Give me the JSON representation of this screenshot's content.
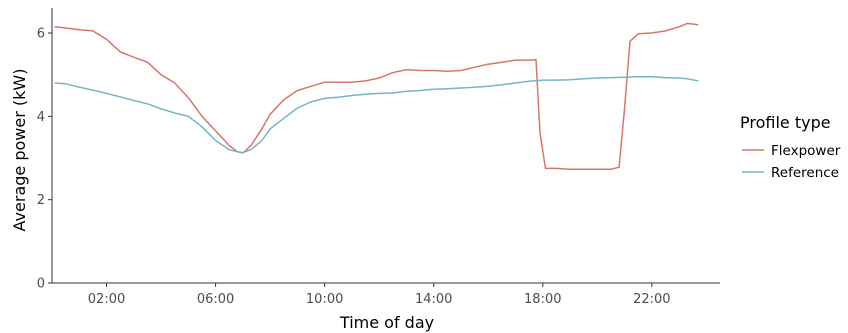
{
  "chart_data": {
    "type": "line",
    "xlabel": "Time of day",
    "ylabel": "Average power (kW)",
    "x_unit": "hours",
    "xlim": [
      0,
      24.5
    ],
    "ylim": [
      0,
      6.6
    ],
    "x_ticks": [
      2,
      6,
      10,
      14,
      18,
      22
    ],
    "x_tick_labels": [
      "02:00",
      "06:00",
      "10:00",
      "14:00",
      "18:00",
      "22:00"
    ],
    "y_ticks": [
      0,
      2,
      4,
      6
    ],
    "y_tick_labels": [
      "0",
      "2",
      "4",
      "6"
    ],
    "grid": false,
    "legend": {
      "title": "Profile type",
      "position": "right"
    },
    "series": [
      {
        "name": "Flexpower",
        "color": "#d4776a",
        "x": [
          0.1,
          0.5,
          1.0,
          1.5,
          2.0,
          2.5,
          3.0,
          3.5,
          4.0,
          4.5,
          5.0,
          5.5,
          6.0,
          6.5,
          6.8,
          7.0,
          7.3,
          7.7,
          8.0,
          8.5,
          9.0,
          9.5,
          10.0,
          10.5,
          11.0,
          11.5,
          12.0,
          12.5,
          13.0,
          13.5,
          14.0,
          14.5,
          15.0,
          15.5,
          16.0,
          16.5,
          17.0,
          17.5,
          17.75,
          17.9,
          18.1,
          18.5,
          19.0,
          19.5,
          20.0,
          20.5,
          20.8,
          21.0,
          21.2,
          21.5,
          22.0,
          22.5,
          23.0,
          23.3,
          23.7
        ],
        "y": [
          6.15,
          6.12,
          6.08,
          6.05,
          5.85,
          5.55,
          5.42,
          5.3,
          5.0,
          4.8,
          4.45,
          4.0,
          3.65,
          3.3,
          3.15,
          3.12,
          3.3,
          3.7,
          4.05,
          4.4,
          4.62,
          4.72,
          4.82,
          4.82,
          4.82,
          4.85,
          4.92,
          5.05,
          5.12,
          5.1,
          5.1,
          5.08,
          5.1,
          5.18,
          5.25,
          5.3,
          5.35,
          5.35,
          5.36,
          3.6,
          2.75,
          2.75,
          2.73,
          2.73,
          2.73,
          2.73,
          2.78,
          4.2,
          5.8,
          5.98,
          6.0,
          6.05,
          6.15,
          6.23,
          6.2
        ]
      },
      {
        "name": "Reference",
        "color": "#72b7c1",
        "x": [
          0.1,
          0.5,
          1.0,
          1.5,
          2.0,
          2.5,
          3.0,
          3.5,
          4.0,
          4.5,
          5.0,
          5.5,
          6.0,
          6.5,
          6.8,
          7.0,
          7.3,
          7.7,
          8.0,
          8.5,
          9.0,
          9.5,
          10.0,
          10.5,
          11.0,
          11.5,
          12.0,
          12.5,
          13.0,
          13.5,
          14.0,
          14.5,
          15.0,
          15.5,
          16.0,
          16.5,
          17.0,
          17.5,
          18.0,
          18.5,
          19.0,
          19.5,
          20.0,
          20.5,
          21.0,
          21.5,
          22.0,
          22.5,
          23.0,
          23.3,
          23.7
        ],
        "y": [
          4.8,
          4.78,
          4.7,
          4.63,
          4.55,
          4.47,
          4.38,
          4.3,
          4.18,
          4.08,
          4.0,
          3.75,
          3.42,
          3.2,
          3.15,
          3.13,
          3.2,
          3.42,
          3.7,
          3.95,
          4.2,
          4.35,
          4.43,
          4.46,
          4.5,
          4.53,
          4.55,
          4.56,
          4.6,
          4.62,
          4.65,
          4.66,
          4.68,
          4.7,
          4.72,
          4.76,
          4.8,
          4.84,
          4.87,
          4.87,
          4.88,
          4.9,
          4.92,
          4.93,
          4.94,
          4.95,
          4.95,
          4.93,
          4.92,
          4.9,
          4.85
        ]
      }
    ]
  }
}
